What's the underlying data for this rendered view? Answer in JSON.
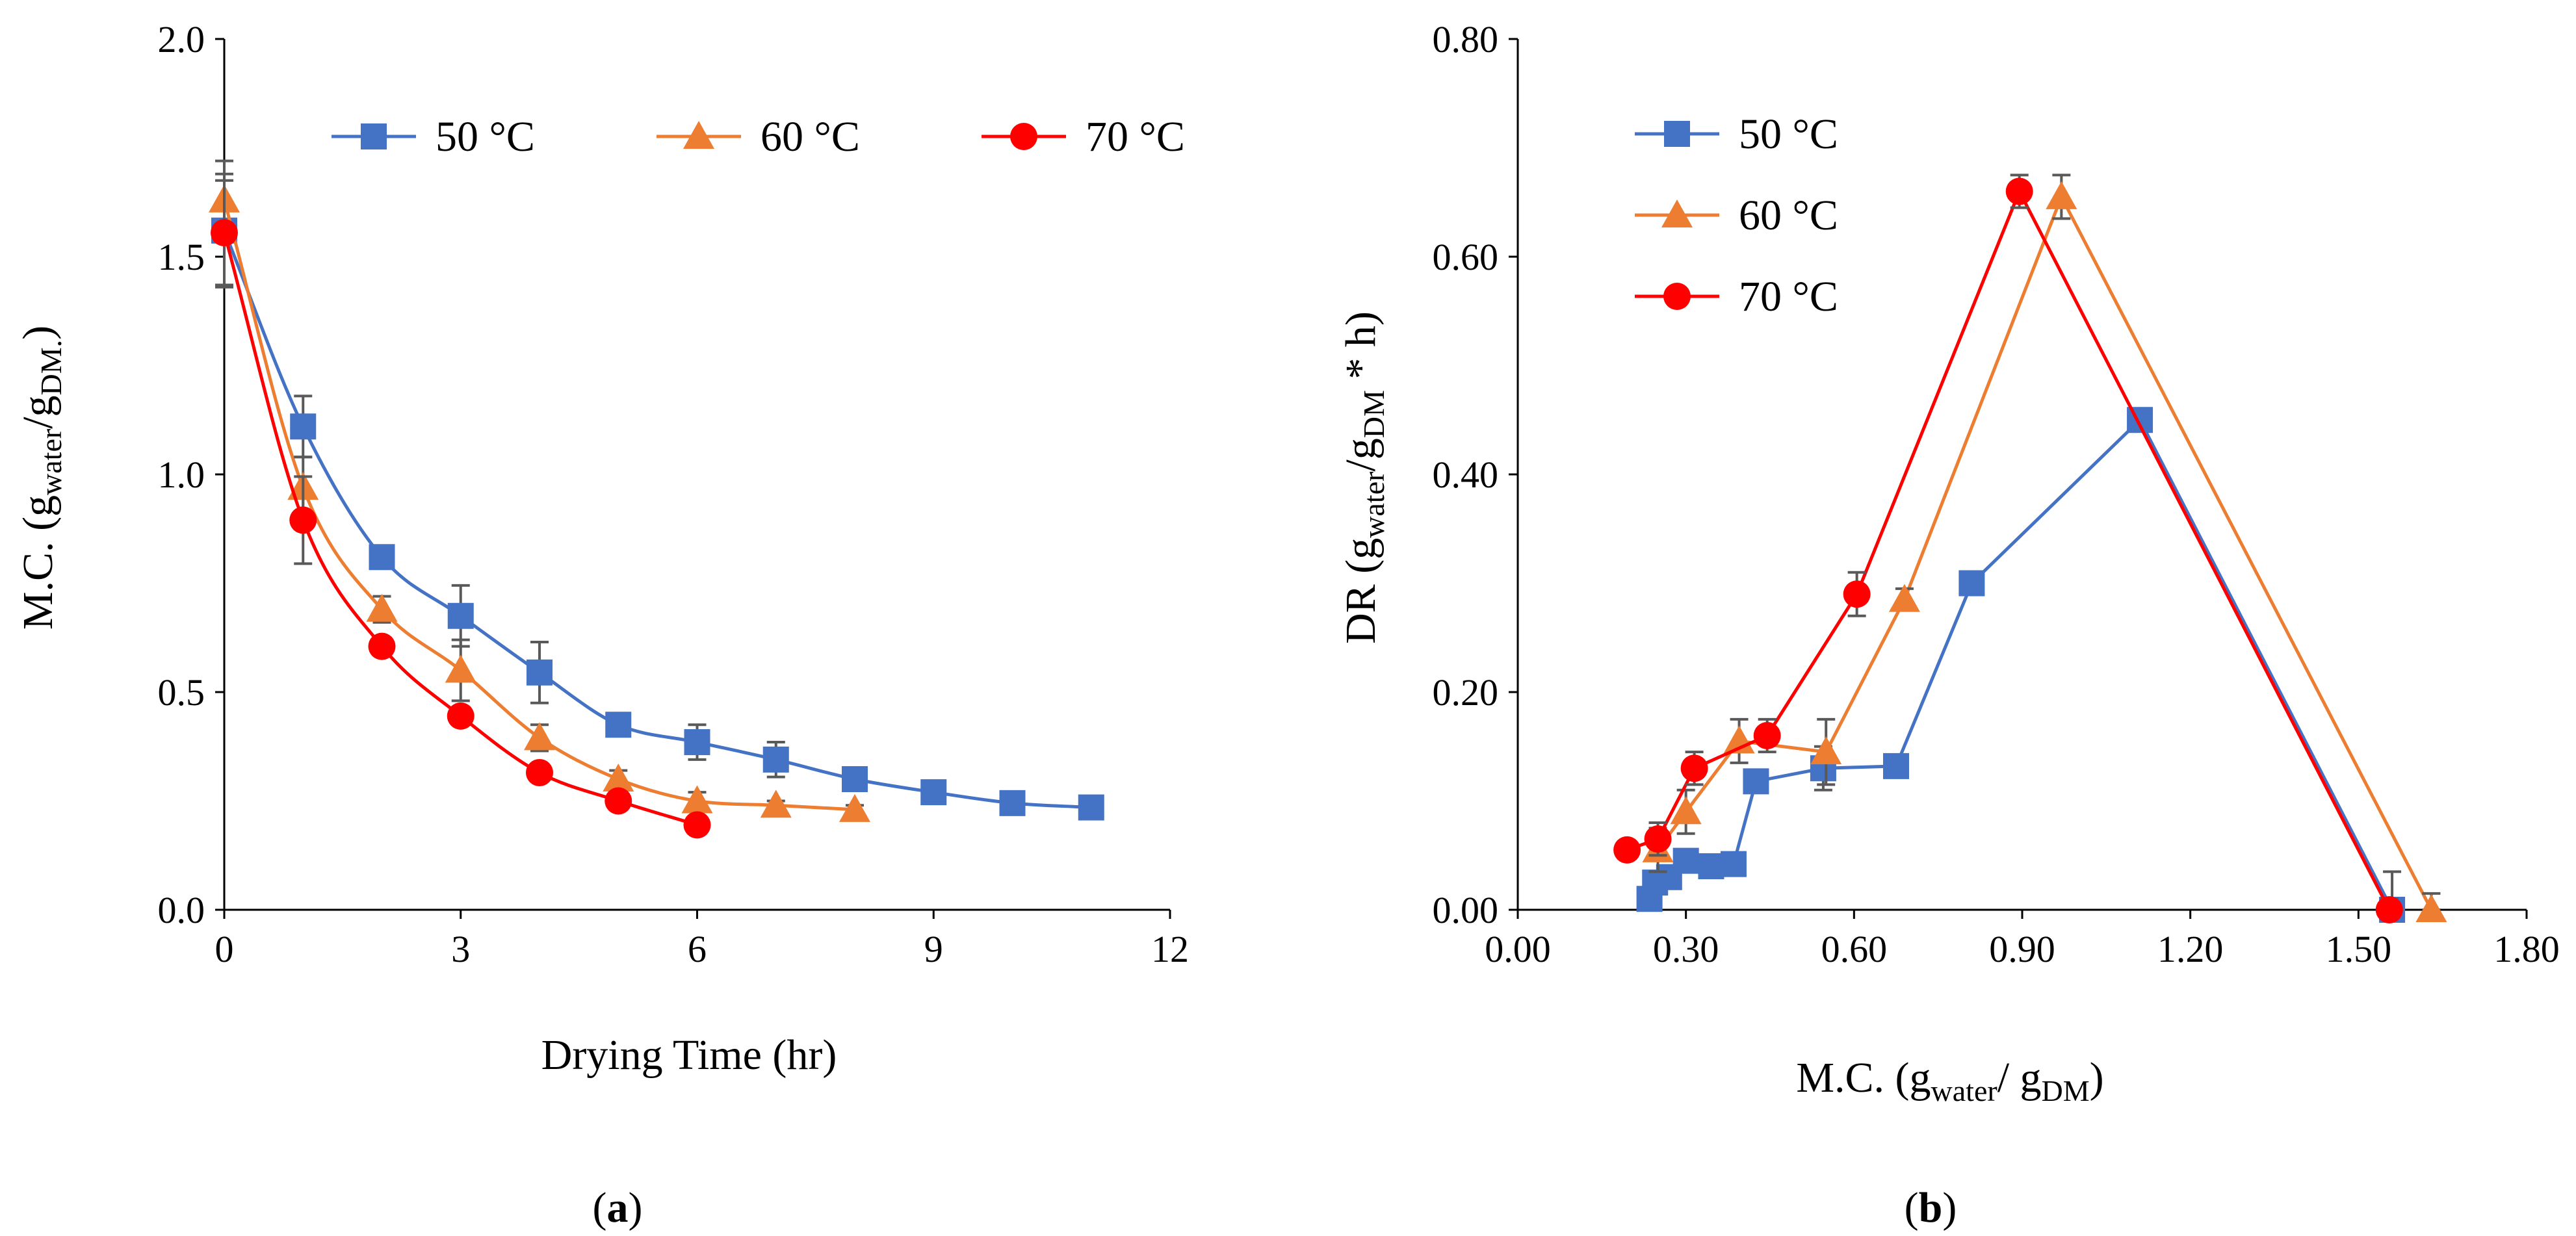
{
  "colors": {
    "50": "#4472C4",
    "60": "#ED7D31",
    "70": "#FF0000"
  },
  "chart_data": [
    {
      "type": "line",
      "panel_label": "(a)",
      "panel_letter": "a",
      "ylabel_main": "M.C. (g",
      "ylabel_sub1": "water",
      "ylabel_mid": "/g",
      "ylabel_sub2": "DM.",
      "ylabel_end": ")",
      "xlabel": "Drying Time (hr)",
      "xlim": [
        0,
        12
      ],
      "ylim": [
        0,
        2.0
      ],
      "xticks": [
        "0",
        "3",
        "6",
        "9",
        "12"
      ],
      "yticks": [
        "0.0",
        "0.5",
        "1.0",
        "1.5",
        "2.0"
      ],
      "legend_position": "top",
      "series": [
        {
          "name": "50 °C",
          "key": "50",
          "marker": "square",
          "x": [
            0,
            1,
            2,
            3,
            4,
            5,
            6,
            7,
            8,
            9,
            10,
            11
          ],
          "y": [
            1.56,
            1.11,
            0.81,
            0.675,
            0.545,
            0.425,
            0.385,
            0.345,
            0.3,
            0.27,
            0.245,
            0.235
          ],
          "err": [
            0.13,
            0.07,
            0.02,
            0.07,
            0.07,
            0.02,
            0.04,
            0.04,
            0.02,
            0.02,
            0.01,
            0.01
          ]
        },
        {
          "name": "60 °C",
          "key": "60",
          "marker": "triangle",
          "x": [
            0,
            1,
            2,
            3,
            4,
            5,
            6,
            7,
            8
          ],
          "y": [
            1.63,
            0.97,
            0.69,
            0.55,
            0.395,
            0.3,
            0.25,
            0.24,
            0.23
          ],
          "err": [
            0.09,
            0.07,
            0.03,
            0.07,
            0.03,
            0.02,
            0.02,
            0.01,
            0.01
          ]
        },
        {
          "name": "70 °C",
          "key": "70",
          "marker": "circle",
          "x": [
            0,
            1,
            2,
            3,
            4,
            5,
            6
          ],
          "y": [
            1.555,
            0.895,
            0.605,
            0.445,
            0.315,
            0.25,
            0.195
          ],
          "err": [
            0.12,
            0.1,
            0.02,
            0.02,
            0.02,
            0.02,
            0.01
          ]
        }
      ]
    },
    {
      "type": "line",
      "panel_label": "(b)",
      "panel_letter": "b",
      "ylabel_main": "DR (g",
      "ylabel_sub1": "water",
      "ylabel_mid": "/g",
      "ylabel_sub2": "DM",
      "ylabel_end": " * h)",
      "xlabel_main": "M.C. (g",
      "xlabel_sub1": "water",
      "xlabel_mid": "/ g",
      "xlabel_sub2": "DM",
      "xlabel_end": ")",
      "xlim": [
        0,
        1.8
      ],
      "ylim": [
        0,
        0.8
      ],
      "xticks": [
        "0.00",
        "0.30",
        "0.60",
        "0.90",
        "1.20",
        "1.50",
        "1.80"
      ],
      "yticks": [
        "0.00",
        "0.20",
        "0.40",
        "0.60",
        "0.80"
      ],
      "legend_position": "top-left",
      "series": [
        {
          "name": "50 °C",
          "key": "50",
          "marker": "square",
          "x": [
            0.235,
            0.245,
            0.27,
            0.3,
            0.345,
            0.385,
            0.425,
            0.545,
            0.675,
            0.81,
            1.11,
            1.56
          ],
          "y": [
            0.01,
            0.025,
            0.03,
            0.045,
            0.04,
            0.042,
            0.118,
            0.13,
            0.132,
            0.3,
            0.45,
            0.0
          ],
          "err": [
            0,
            0,
            0.005,
            0.005,
            0.005,
            0.005,
            0.01,
            0.02,
            0.01,
            0.01,
            0.01,
            0.035
          ]
        },
        {
          "name": "60 °C",
          "key": "60",
          "marker": "triangle",
          "x": [
            0.25,
            0.3,
            0.395,
            0.55,
            0.69,
            0.97,
            1.63
          ],
          "y": [
            0.055,
            0.09,
            0.155,
            0.145,
            0.285,
            0.655,
            0.0
          ],
          "err": [
            0.02,
            0.02,
            0.02,
            0.03,
            0.01,
            0.02,
            0.015
          ]
        },
        {
          "name": "70 °C",
          "key": "70",
          "marker": "circle",
          "x": [
            0.195,
            0.25,
            0.315,
            0.445,
            0.605,
            0.895,
            1.555
          ],
          "y": [
            0.055,
            0.065,
            0.13,
            0.16,
            0.29,
            0.66,
            0.0
          ],
          "err": [
            0,
            0.015,
            0.015,
            0.015,
            0.02,
            0.015,
            0.01
          ]
        }
      ]
    }
  ]
}
